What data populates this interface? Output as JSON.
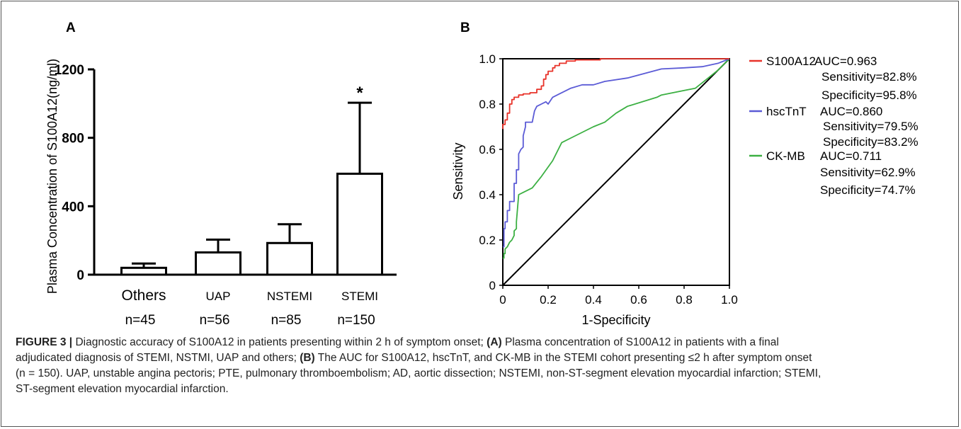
{
  "panel_a": {
    "letter": "A",
    "ylabel": "Plasma Concentration of S100A12(ng/ml)",
    "yticks": [
      "0",
      "400",
      "800",
      "1200"
    ],
    "categories": [
      "Others",
      "UAP",
      "NSTEMI",
      "STEMI"
    ],
    "n_labels": [
      "n=45",
      "n=56",
      "n=85",
      "n=150"
    ],
    "significance": "*"
  },
  "panel_b": {
    "letter": "B",
    "xlabel": "1-Specificity",
    "ylabel": "Sensitivity",
    "xticks": [
      "0",
      "0.2",
      "0.4",
      "0.6",
      "0.8",
      "1.0"
    ],
    "yticks": [
      "0",
      "0.2",
      "0.4",
      "0.6",
      "0.8",
      "1.0"
    ],
    "legend": [
      {
        "name": "S100A12",
        "color": "#e8332a",
        "auc": "AUC=0.963",
        "sens": "Sensitivity=82.8%",
        "spec": "Specificity=95.8%"
      },
      {
        "name": "hscTnT",
        "color": "#5b5bd6",
        "auc": "AUC=0.860",
        "sens": "Sensitivity=79.5%",
        "spec": "Specificity=83.2%"
      },
      {
        "name": "CK-MB",
        "color": "#3cb043",
        "auc": "AUC=0.711",
        "sens": "Sensitivity=62.9%",
        "spec": "Specificity=74.7%"
      }
    ]
  },
  "caption": {
    "label": "FIGURE 3 |",
    "l1": " Diagnostic accuracy of S100A12 in patients presenting within 2 h of symptom onset; ",
    "a": "(A)",
    "l1b": " Plasma concentration of S100A12 in patients with a final",
    "l2": "adjudicated diagnosis of STEMI, NSTMI, UAP and others; ",
    "b": "(B)",
    "l2b": " The AUC for S100A12, hscTnT, and CK-MB in the STEMI cohort presenting ≤2 h after symptom onset",
    "l3": "(n = 150). UAP, unstable angina pectoris; PTE, pulmonary thromboembolism; AD, aortic dissection; NSTEMI, non-ST-segment elevation myocardial infarction; STEMI,",
    "l4": "ST-segment elevation myocardial infarction."
  },
  "chart_data": [
    {
      "type": "bar",
      "categories": [
        "Others",
        "UAP",
        "NSTEMI",
        "STEMI"
      ],
      "values": [
        40,
        130,
        185,
        590
      ],
      "error_upper": [
        65,
        205,
        295,
        1005
      ],
      "ylabel": "Plasma Concentration of S100A12(ng/ml)",
      "ylim": [
        0,
        1200
      ],
      "annotations": [
        {
          "category": "STEMI",
          "text": "*"
        }
      ]
    },
    {
      "type": "line",
      "xlabel": "1-Specificity",
      "ylabel": "Sensitivity",
      "xlim": [
        0,
        1
      ],
      "ylim": [
        0,
        1
      ],
      "grid": false,
      "legend_position": "right",
      "reference_line": [
        [
          0,
          0
        ],
        [
          1,
          1
        ]
      ],
      "series": [
        {
          "name": "S100A12",
          "color": "#e8332a",
          "auc": 0.963,
          "sensitivity": 82.8,
          "specificity": 95.8,
          "points": [
            [
              0,
              0.69
            ],
            [
              0,
              0.71
            ],
            [
              0.01,
              0.71
            ],
            [
              0.01,
              0.73
            ],
            [
              0.02,
              0.73
            ],
            [
              0.02,
              0.76
            ],
            [
              0.03,
              0.76
            ],
            [
              0.03,
              0.8
            ],
            [
              0.04,
              0.8
            ],
            [
              0.04,
              0.82
            ],
            [
              0.05,
              0.82
            ],
            [
              0.05,
              0.83
            ],
            [
              0.07,
              0.83
            ],
            [
              0.07,
              0.84
            ],
            [
              0.09,
              0.84
            ],
            [
              0.09,
              0.845
            ],
            [
              0.12,
              0.845
            ],
            [
              0.12,
              0.85
            ],
            [
              0.15,
              0.85
            ],
            [
              0.15,
              0.865
            ],
            [
              0.17,
              0.865
            ],
            [
              0.17,
              0.88
            ],
            [
              0.18,
              0.88
            ],
            [
              0.18,
              0.91
            ],
            [
              0.19,
              0.91
            ],
            [
              0.19,
              0.93
            ],
            [
              0.2,
              0.93
            ],
            [
              0.2,
              0.945
            ],
            [
              0.22,
              0.945
            ],
            [
              0.22,
              0.96
            ],
            [
              0.23,
              0.96
            ],
            [
              0.23,
              0.97
            ],
            [
              0.25,
              0.97
            ],
            [
              0.25,
              0.98
            ],
            [
              0.28,
              0.98
            ],
            [
              0.28,
              0.99
            ],
            [
              0.32,
              0.99
            ],
            [
              0.32,
              0.995
            ],
            [
              0.43,
              0.995
            ],
            [
              0.43,
              1.0
            ],
            [
              1.0,
              1.0
            ]
          ]
        },
        {
          "name": "hscTnT",
          "color": "#5b5bd6",
          "auc": 0.86,
          "sensitivity": 79.5,
          "specificity": 83.2,
          "points": [
            [
              0,
              0.17
            ],
            [
              0.005,
              0.17
            ],
            [
              0.005,
              0.25
            ],
            [
              0.01,
              0.25
            ],
            [
              0.01,
              0.28
            ],
            [
              0.02,
              0.28
            ],
            [
              0.02,
              0.33
            ],
            [
              0.03,
              0.33
            ],
            [
              0.03,
              0.37
            ],
            [
              0.04,
              0.37
            ],
            [
              0.05,
              0.37
            ],
            [
              0.05,
              0.45
            ],
            [
              0.06,
              0.45
            ],
            [
              0.06,
              0.51
            ],
            [
              0.07,
              0.51
            ],
            [
              0.07,
              0.58
            ],
            [
              0.08,
              0.6
            ],
            [
              0.09,
              0.61
            ],
            [
              0.09,
              0.66
            ],
            [
              0.1,
              0.7
            ],
            [
              0.1,
              0.72
            ],
            [
              0.13,
              0.72
            ],
            [
              0.14,
              0.77
            ],
            [
              0.15,
              0.79
            ],
            [
              0.17,
              0.8
            ],
            [
              0.19,
              0.81
            ],
            [
              0.2,
              0.8
            ],
            [
              0.22,
              0.83
            ],
            [
              0.25,
              0.845
            ],
            [
              0.3,
              0.87
            ],
            [
              0.35,
              0.885
            ],
            [
              0.4,
              0.885
            ],
            [
              0.45,
              0.9
            ],
            [
              0.55,
              0.915
            ],
            [
              0.7,
              0.955
            ],
            [
              0.8,
              0.96
            ],
            [
              0.88,
              0.965
            ],
            [
              0.95,
              0.98
            ],
            [
              1.0,
              1.0
            ]
          ]
        },
        {
          "name": "CK-MB",
          "color": "#3cb043",
          "auc": 0.711,
          "sensitivity": 62.9,
          "specificity": 74.7,
          "points": [
            [
              0,
              0.12
            ],
            [
              0.005,
              0.12
            ],
            [
              0.005,
              0.14
            ],
            [
              0.01,
              0.14
            ],
            [
              0.01,
              0.16
            ],
            [
              0.02,
              0.17
            ],
            [
              0.03,
              0.19
            ],
            [
              0.04,
              0.2
            ],
            [
              0.05,
              0.22
            ],
            [
              0.05,
              0.24
            ],
            [
              0.06,
              0.25
            ],
            [
              0.06,
              0.28
            ],
            [
              0.07,
              0.4
            ],
            [
              0.09,
              0.41
            ],
            [
              0.13,
              0.43
            ],
            [
              0.17,
              0.48
            ],
            [
              0.22,
              0.55
            ],
            [
              0.26,
              0.63
            ],
            [
              0.3,
              0.65
            ],
            [
              0.4,
              0.7
            ],
            [
              0.45,
              0.72
            ],
            [
              0.5,
              0.76
            ],
            [
              0.55,
              0.79
            ],
            [
              0.68,
              0.83
            ],
            [
              0.7,
              0.84
            ],
            [
              0.85,
              0.87
            ],
            [
              0.9,
              0.91
            ],
            [
              0.95,
              0.95
            ],
            [
              1.0,
              1.0
            ]
          ]
        }
      ]
    }
  ]
}
